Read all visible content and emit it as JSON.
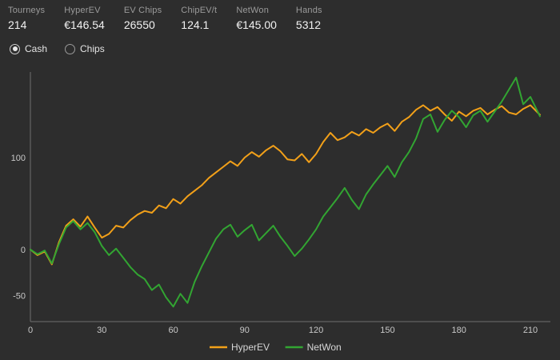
{
  "stats": [
    {
      "label": "Tourneys",
      "value": "214"
    },
    {
      "label": "HyperEV",
      "value": "€146.54"
    },
    {
      "label": "EV Chips",
      "value": "26550"
    },
    {
      "label": "ChipEV/t",
      "value": "124.1"
    },
    {
      "label": "NetWon",
      "value": "€145.00"
    },
    {
      "label": "Hands",
      "value": "5312"
    }
  ],
  "view_toggle": {
    "options": [
      {
        "label": "Cash",
        "selected": true
      },
      {
        "label": "Chips",
        "selected": false
      }
    ]
  },
  "colors": {
    "background": "#2d2d2d",
    "axis": "#6e6e6e",
    "tick_text": "#c8c8c8",
    "legend_text": "#d6d6d6",
    "hyperev": "#f2a019",
    "netwon": "#32a532"
  },
  "chart_data": {
    "type": "line",
    "title": "",
    "xlabel": "",
    "ylabel": "",
    "grid": false,
    "legend_position": "bottom",
    "xlim": [
      0,
      218
    ],
    "ylim": [
      -78,
      188
    ],
    "x_ticks": [
      0,
      30,
      60,
      90,
      120,
      150,
      180,
      210
    ],
    "y_ticks": [
      100,
      0,
      -50
    ],
    "x": [
      0,
      3,
      6,
      9,
      12,
      15,
      18,
      21,
      24,
      27,
      30,
      33,
      36,
      39,
      42,
      45,
      48,
      51,
      54,
      57,
      60,
      63,
      66,
      69,
      72,
      75,
      78,
      81,
      84,
      87,
      90,
      93,
      96,
      99,
      102,
      105,
      108,
      111,
      114,
      117,
      120,
      123,
      126,
      129,
      132,
      135,
      138,
      141,
      144,
      147,
      150,
      153,
      156,
      159,
      162,
      165,
      168,
      171,
      174,
      177,
      180,
      183,
      186,
      189,
      192,
      195,
      198,
      201,
      204,
      207,
      210,
      214
    ],
    "series": [
      {
        "name": "HyperEV",
        "color": "#f2a019",
        "values": [
          0,
          -6,
          -2,
          -16,
          8,
          26,
          33,
          25,
          36,
          24,
          13,
          17,
          26,
          24,
          32,
          38,
          42,
          40,
          48,
          45,
          55,
          50,
          58,
          64,
          70,
          78,
          84,
          90,
          96,
          91,
          100,
          106,
          101,
          108,
          113,
          107,
          98,
          97,
          104,
          95,
          104,
          117,
          127,
          119,
          122,
          128,
          124,
          131,
          127,
          133,
          137,
          129,
          139,
          144,
          152,
          157,
          151,
          155,
          147,
          140,
          150,
          145,
          151,
          154,
          147,
          152,
          156,
          149,
          147,
          153,
          157,
          146.54
        ]
      },
      {
        "name": "NetWon",
        "color": "#32a532",
        "values": [
          0,
          -5,
          -1,
          -15,
          6,
          24,
          31,
          22,
          29,
          19,
          4,
          -6,
          1,
          -9,
          -19,
          -27,
          -32,
          -44,
          -38,
          -52,
          -62,
          -48,
          -58,
          -35,
          -18,
          -3,
          12,
          22,
          27,
          14,
          21,
          27,
          10,
          18,
          26,
          14,
          4,
          -7,
          1,
          11,
          22,
          36,
          46,
          56,
          67,
          54,
          44,
          60,
          71,
          81,
          91,
          79,
          95,
          106,
          121,
          142,
          147,
          128,
          141,
          151,
          144,
          133,
          146,
          151,
          139,
          150,
          161,
          174,
          187,
          158,
          166,
          145
        ]
      }
    ]
  }
}
